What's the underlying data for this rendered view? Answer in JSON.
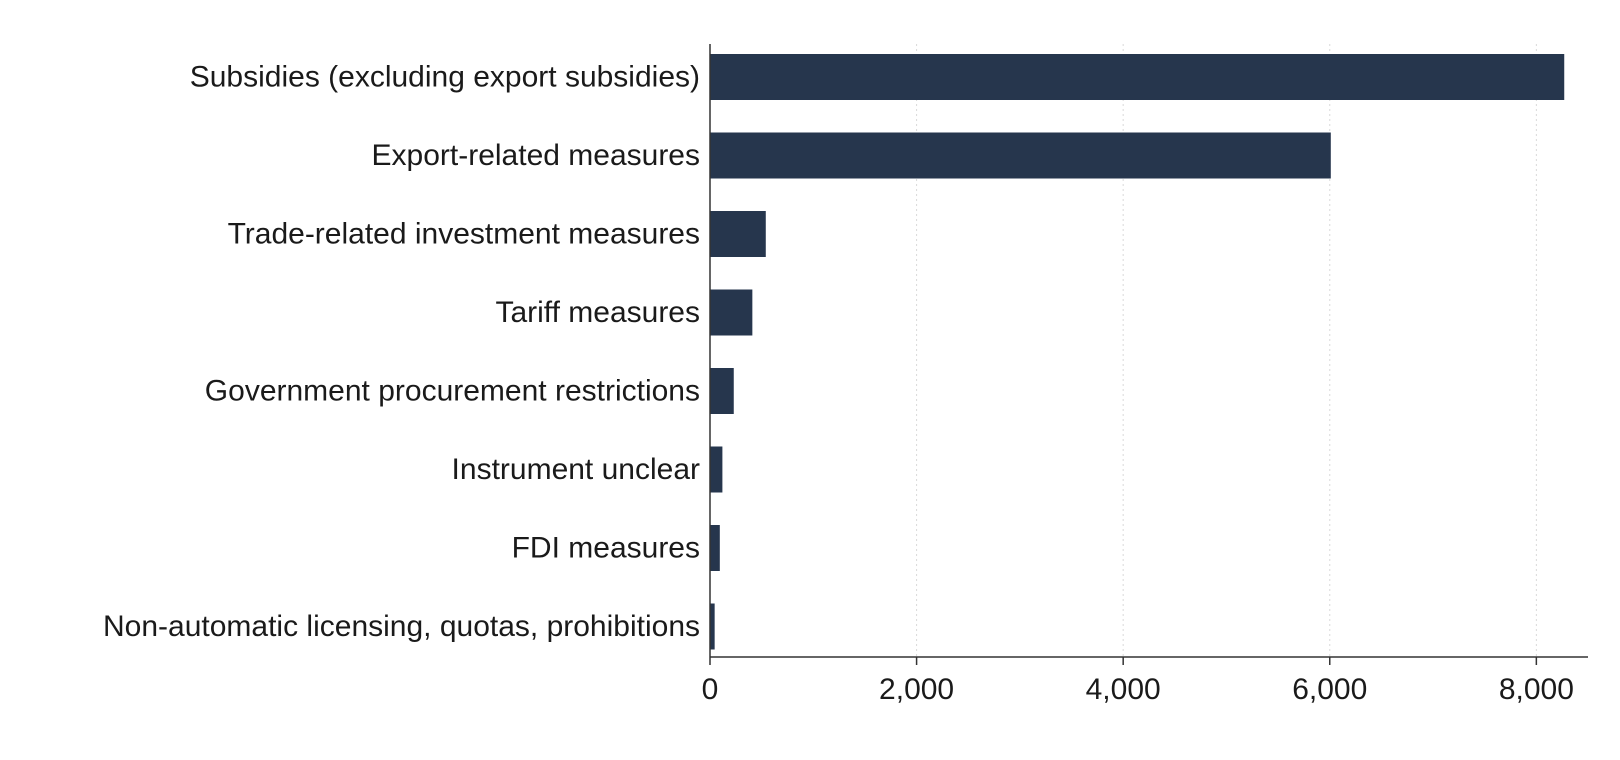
{
  "chart_data": {
    "type": "bar",
    "orientation": "horizontal",
    "categories": [
      "Subsidies (excluding export subsidies)",
      "Export-related measures",
      "Trade-related investment measures",
      "Tariff measures",
      "Government procurement restrictions",
      "Instrument unclear",
      "FDI measures",
      "Non-automatic licensing, quotas, prohibitions"
    ],
    "values": [
      8270,
      6010,
      540,
      410,
      230,
      120,
      95,
      45
    ],
    "xlim": [
      0,
      8500
    ],
    "xticks": [
      0,
      2000,
      4000,
      6000,
      8000
    ],
    "xtick_labels": [
      "0",
      "2,000",
      "4,000",
      "6,000",
      "8,000"
    ],
    "grid": true,
    "bar_color": "#26364d"
  }
}
